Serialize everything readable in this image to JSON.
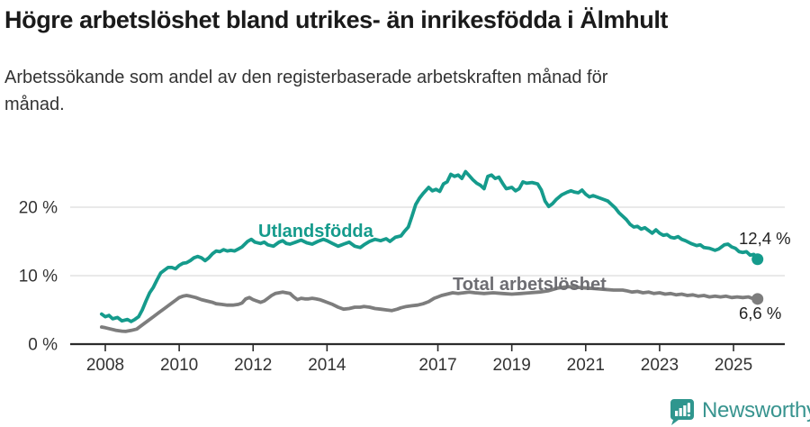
{
  "header": {
    "title": "Högre arbetslöshet bland utrikes- än inrikesfödda i Älmhult",
    "subtitle_line1": "Arbetssökande som andel av den registerbaserade arbetskraften månad för",
    "subtitle_line2": "månad."
  },
  "footer": {
    "brand": "Newsworthy",
    "brand_color": "#38948f",
    "icon_color": "#2f968e"
  },
  "chart_data": {
    "type": "line",
    "title": "Högre arbetslöshet bland utrikes- än inrikesfödda i Älmhult",
    "subtitle": "Arbetssökande som andel av den registerbaserade arbetskraften månad för månad.",
    "unit": "percent",
    "grid": "horizontal-only",
    "x_axis": {
      "range": [
        2007.9,
        2026.3
      ],
      "ticks": [
        2008,
        2010,
        2012,
        2014,
        2017,
        2019,
        2021,
        2023,
        2025
      ]
    },
    "y_axis": {
      "range": [
        0,
        26
      ],
      "ticks": [
        {
          "value": 0,
          "label": "0 %"
        },
        {
          "value": 10,
          "label": "10 %"
        },
        {
          "value": 20,
          "label": "20 %"
        }
      ]
    },
    "colors": {
      "gridline": "#e2e2e2",
      "axis": "#2b2b2b",
      "tick_text": "#333333",
      "value_label": "#222222"
    },
    "series": [
      {
        "name": "Utlandsfödda",
        "label": "Utlandsfödda",
        "color": "#159b8c",
        "label_color": "#159b8c",
        "end_label": "12,4 %",
        "end_value": 12.4,
        "points": [
          [
            2007.9,
            4.4
          ],
          [
            2008.0,
            4.0
          ],
          [
            2008.1,
            4.2
          ],
          [
            2008.2,
            3.7
          ],
          [
            2008.33,
            3.9
          ],
          [
            2008.45,
            3.4
          ],
          [
            2008.6,
            3.6
          ],
          [
            2008.7,
            3.3
          ],
          [
            2008.8,
            3.6
          ],
          [
            2008.9,
            4.0
          ],
          [
            2009.0,
            5.0
          ],
          [
            2009.1,
            6.3
          ],
          [
            2009.2,
            7.5
          ],
          [
            2009.3,
            8.3
          ],
          [
            2009.4,
            9.4
          ],
          [
            2009.5,
            10.4
          ],
          [
            2009.6,
            10.8
          ],
          [
            2009.7,
            11.2
          ],
          [
            2009.8,
            11.2
          ],
          [
            2009.9,
            11.0
          ],
          [
            2010.0,
            11.5
          ],
          [
            2010.1,
            11.8
          ],
          [
            2010.2,
            11.9
          ],
          [
            2010.3,
            12.2
          ],
          [
            2010.4,
            12.6
          ],
          [
            2010.5,
            12.8
          ],
          [
            2010.6,
            12.6
          ],
          [
            2010.7,
            12.2
          ],
          [
            2010.8,
            12.6
          ],
          [
            2010.9,
            13.2
          ],
          [
            2011.0,
            13.6
          ],
          [
            2011.1,
            13.5
          ],
          [
            2011.2,
            13.8
          ],
          [
            2011.3,
            13.6
          ],
          [
            2011.4,
            13.7
          ],
          [
            2011.5,
            13.6
          ],
          [
            2011.6,
            13.9
          ],
          [
            2011.7,
            14.2
          ],
          [
            2011.85,
            15.0
          ],
          [
            2011.95,
            15.3
          ],
          [
            2012.05,
            14.9
          ],
          [
            2012.2,
            14.7
          ],
          [
            2012.3,
            14.9
          ],
          [
            2012.4,
            14.5
          ],
          [
            2012.55,
            14.3
          ],
          [
            2012.7,
            14.9
          ],
          [
            2012.8,
            15.1
          ],
          [
            2012.9,
            14.7
          ],
          [
            2013.0,
            14.6
          ],
          [
            2013.15,
            14.9
          ],
          [
            2013.3,
            15.2
          ],
          [
            2013.45,
            14.8
          ],
          [
            2013.6,
            14.6
          ],
          [
            2013.75,
            15.0
          ],
          [
            2013.9,
            15.3
          ],
          [
            2014.0,
            15.1
          ],
          [
            2014.15,
            14.7
          ],
          [
            2014.3,
            14.3
          ],
          [
            2014.45,
            14.6
          ],
          [
            2014.6,
            14.9
          ],
          [
            2014.75,
            14.3
          ],
          [
            2014.9,
            14.1
          ],
          [
            2015.0,
            14.5
          ],
          [
            2015.15,
            15.0
          ],
          [
            2015.3,
            15.3
          ],
          [
            2015.45,
            15.1
          ],
          [
            2015.6,
            15.4
          ],
          [
            2015.7,
            15.0
          ],
          [
            2015.85,
            15.6
          ],
          [
            2016.0,
            15.8
          ],
          [
            2016.1,
            16.5
          ],
          [
            2016.2,
            17.1
          ],
          [
            2016.3,
            18.7
          ],
          [
            2016.4,
            20.4
          ],
          [
            2016.5,
            21.3
          ],
          [
            2016.6,
            22.0
          ],
          [
            2016.75,
            22.9
          ],
          [
            2016.85,
            22.4
          ],
          [
            2016.95,
            22.6
          ],
          [
            2017.05,
            22.3
          ],
          [
            2017.15,
            23.4
          ],
          [
            2017.25,
            23.7
          ],
          [
            2017.35,
            24.8
          ],
          [
            2017.45,
            24.5
          ],
          [
            2017.55,
            24.7
          ],
          [
            2017.65,
            24.2
          ],
          [
            2017.75,
            25.2
          ],
          [
            2017.85,
            24.6
          ],
          [
            2017.95,
            24.0
          ],
          [
            2018.05,
            23.5
          ],
          [
            2018.15,
            23.2
          ],
          [
            2018.25,
            22.7
          ],
          [
            2018.35,
            24.5
          ],
          [
            2018.45,
            24.7
          ],
          [
            2018.55,
            24.2
          ],
          [
            2018.65,
            24.4
          ],
          [
            2018.75,
            23.5
          ],
          [
            2018.85,
            22.7
          ],
          [
            2019.0,
            22.9
          ],
          [
            2019.1,
            22.4
          ],
          [
            2019.2,
            22.7
          ],
          [
            2019.3,
            23.7
          ],
          [
            2019.4,
            23.5
          ],
          [
            2019.55,
            23.6
          ],
          [
            2019.7,
            23.4
          ],
          [
            2019.8,
            22.5
          ],
          [
            2019.9,
            20.9
          ],
          [
            2020.0,
            20.1
          ],
          [
            2020.1,
            20.5
          ],
          [
            2020.2,
            21.1
          ],
          [
            2020.35,
            21.8
          ],
          [
            2020.5,
            22.2
          ],
          [
            2020.6,
            22.4
          ],
          [
            2020.7,
            22.2
          ],
          [
            2020.8,
            22.1
          ],
          [
            2020.9,
            22.5
          ],
          [
            2021.0,
            21.9
          ],
          [
            2021.1,
            21.5
          ],
          [
            2021.2,
            21.7
          ],
          [
            2021.3,
            21.5
          ],
          [
            2021.4,
            21.3
          ],
          [
            2021.5,
            21.1
          ],
          [
            2021.6,
            20.9
          ],
          [
            2021.7,
            20.4
          ],
          [
            2021.8,
            19.9
          ],
          [
            2021.9,
            19.2
          ],
          [
            2022.0,
            18.7
          ],
          [
            2022.1,
            18.2
          ],
          [
            2022.2,
            17.5
          ],
          [
            2022.3,
            17.1
          ],
          [
            2022.4,
            17.2
          ],
          [
            2022.5,
            16.8
          ],
          [
            2022.6,
            17.0
          ],
          [
            2022.7,
            16.6
          ],
          [
            2022.8,
            16.2
          ],
          [
            2022.9,
            16.7
          ],
          [
            2023.0,
            16.2
          ],
          [
            2023.1,
            15.9
          ],
          [
            2023.2,
            16.0
          ],
          [
            2023.3,
            15.6
          ],
          [
            2023.4,
            15.5
          ],
          [
            2023.5,
            15.7
          ],
          [
            2023.6,
            15.3
          ],
          [
            2023.7,
            15.1
          ],
          [
            2023.85,
            14.7
          ],
          [
            2024.0,
            14.4
          ],
          [
            2024.1,
            14.5
          ],
          [
            2024.2,
            14.1
          ],
          [
            2024.35,
            14.0
          ],
          [
            2024.5,
            13.7
          ],
          [
            2024.6,
            13.9
          ],
          [
            2024.75,
            14.5
          ],
          [
            2024.85,
            14.6
          ],
          [
            2024.95,
            14.2
          ],
          [
            2025.05,
            14.0
          ],
          [
            2025.15,
            13.5
          ],
          [
            2025.25,
            13.4
          ],
          [
            2025.35,
            13.5
          ],
          [
            2025.45,
            13.0
          ],
          [
            2025.55,
            13.1
          ],
          [
            2025.65,
            12.4
          ]
        ]
      },
      {
        "name": "Total arbetslöshet",
        "label": "Total arbetslöshet",
        "color": "#7d7d7d",
        "label_color": "#6d6d72",
        "end_label": "6,6 %",
        "end_value": 6.6,
        "points": [
          [
            2007.9,
            2.5
          ],
          [
            2008.0,
            2.4
          ],
          [
            2008.15,
            2.2
          ],
          [
            2008.3,
            2.0
          ],
          [
            2008.45,
            1.9
          ],
          [
            2008.55,
            1.85
          ],
          [
            2008.7,
            2.0
          ],
          [
            2008.85,
            2.2
          ],
          [
            2009.0,
            2.8
          ],
          [
            2009.15,
            3.4
          ],
          [
            2009.3,
            4.0
          ],
          [
            2009.45,
            4.6
          ],
          [
            2009.6,
            5.2
          ],
          [
            2009.75,
            5.8
          ],
          [
            2009.9,
            6.4
          ],
          [
            2010.0,
            6.8
          ],
          [
            2010.1,
            7.0
          ],
          [
            2010.2,
            7.1
          ],
          [
            2010.3,
            7.0
          ],
          [
            2010.45,
            6.8
          ],
          [
            2010.6,
            6.5
          ],
          [
            2010.75,
            6.3
          ],
          [
            2010.9,
            6.1
          ],
          [
            2011.0,
            5.9
          ],
          [
            2011.15,
            5.8
          ],
          [
            2011.3,
            5.7
          ],
          [
            2011.45,
            5.7
          ],
          [
            2011.6,
            5.8
          ],
          [
            2011.7,
            6.0
          ],
          [
            2011.8,
            6.6
          ],
          [
            2011.9,
            6.8
          ],
          [
            2012.0,
            6.5
          ],
          [
            2012.1,
            6.3
          ],
          [
            2012.2,
            6.1
          ],
          [
            2012.3,
            6.3
          ],
          [
            2012.4,
            6.7
          ],
          [
            2012.5,
            7.1
          ],
          [
            2012.6,
            7.4
          ],
          [
            2012.7,
            7.5
          ],
          [
            2012.8,
            7.6
          ],
          [
            2012.9,
            7.5
          ],
          [
            2013.0,
            7.4
          ],
          [
            2013.1,
            6.9
          ],
          [
            2013.2,
            6.5
          ],
          [
            2013.3,
            6.7
          ],
          [
            2013.4,
            6.6
          ],
          [
            2013.5,
            6.6
          ],
          [
            2013.6,
            6.7
          ],
          [
            2013.7,
            6.6
          ],
          [
            2013.8,
            6.5
          ],
          [
            2013.9,
            6.3
          ],
          [
            2014.0,
            6.1
          ],
          [
            2014.15,
            5.8
          ],
          [
            2014.3,
            5.4
          ],
          [
            2014.45,
            5.1
          ],
          [
            2014.6,
            5.2
          ],
          [
            2014.75,
            5.4
          ],
          [
            2014.9,
            5.4
          ],
          [
            2015.0,
            5.5
          ],
          [
            2015.15,
            5.4
          ],
          [
            2015.3,
            5.2
          ],
          [
            2015.45,
            5.1
          ],
          [
            2015.6,
            5.0
          ],
          [
            2015.75,
            4.9
          ],
          [
            2015.9,
            5.1
          ],
          [
            2016.0,
            5.3
          ],
          [
            2016.15,
            5.5
          ],
          [
            2016.3,
            5.6
          ],
          [
            2016.45,
            5.7
          ],
          [
            2016.6,
            5.9
          ],
          [
            2016.75,
            6.2
          ],
          [
            2016.9,
            6.7
          ],
          [
            2017.0,
            6.9
          ],
          [
            2017.1,
            7.1
          ],
          [
            2017.25,
            7.3
          ],
          [
            2017.4,
            7.5
          ],
          [
            2017.55,
            7.4
          ],
          [
            2017.7,
            7.5
          ],
          [
            2017.85,
            7.6
          ],
          [
            2018.0,
            7.5
          ],
          [
            2018.25,
            7.4
          ],
          [
            2018.5,
            7.5
          ],
          [
            2018.75,
            7.4
          ],
          [
            2019.0,
            7.3
          ],
          [
            2019.25,
            7.4
          ],
          [
            2019.5,
            7.5
          ],
          [
            2019.75,
            7.6
          ],
          [
            2020.0,
            7.8
          ],
          [
            2020.25,
            8.2
          ],
          [
            2020.5,
            8.4
          ],
          [
            2020.75,
            8.3
          ],
          [
            2021.0,
            8.2
          ],
          [
            2021.25,
            8.1
          ],
          [
            2021.5,
            8.0
          ],
          [
            2021.75,
            7.9
          ],
          [
            2022.0,
            7.9
          ],
          [
            2022.1,
            7.8
          ],
          [
            2022.25,
            7.6
          ],
          [
            2022.4,
            7.7
          ],
          [
            2022.55,
            7.5
          ],
          [
            2022.7,
            7.6
          ],
          [
            2022.85,
            7.4
          ],
          [
            2023.0,
            7.5
          ],
          [
            2023.15,
            7.3
          ],
          [
            2023.3,
            7.4
          ],
          [
            2023.45,
            7.2
          ],
          [
            2023.6,
            7.3
          ],
          [
            2023.75,
            7.1
          ],
          [
            2023.9,
            7.2
          ],
          [
            2024.05,
            7.0
          ],
          [
            2024.2,
            7.1
          ],
          [
            2024.35,
            6.9
          ],
          [
            2024.5,
            7.0
          ],
          [
            2024.65,
            6.9
          ],
          [
            2024.8,
            7.0
          ],
          [
            2024.95,
            6.8
          ],
          [
            2025.1,
            6.9
          ],
          [
            2025.25,
            6.8
          ],
          [
            2025.4,
            6.9
          ],
          [
            2025.5,
            6.7
          ],
          [
            2025.65,
            6.6
          ]
        ]
      }
    ]
  }
}
